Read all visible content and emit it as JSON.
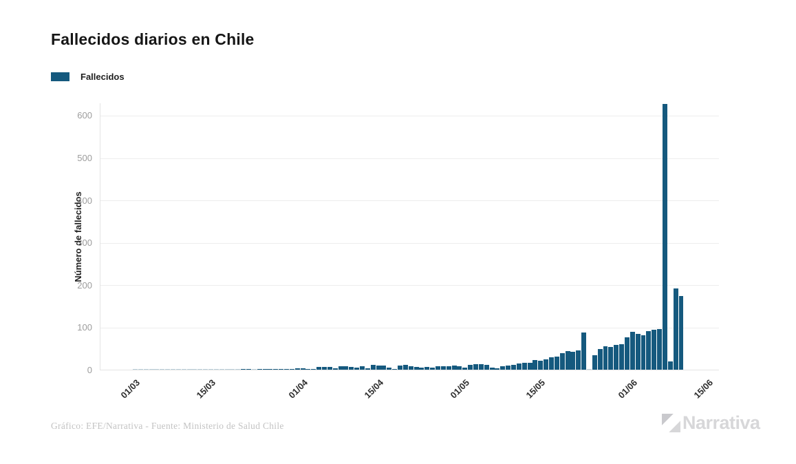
{
  "title": "Fallecidos diarios en Chile",
  "legend": {
    "label": "Fallecidos",
    "color": "#15597e"
  },
  "footer": {
    "credit": "Gráfico: EFE/Narrativa - Fuente: Ministerio de Salud Chile"
  },
  "logo": {
    "text": "Narrativa"
  },
  "chart_data": {
    "type": "bar",
    "title": "Fallecidos diarios en Chile",
    "xlabel": "",
    "ylabel": "Número de fallecidos",
    "series_name": "Fallecidos",
    "bar_color": "#15597e",
    "grid": true,
    "legend_position": "top-left",
    "ylim": [
      0,
      630
    ],
    "yticks": [
      0,
      100,
      200,
      300,
      400,
      500,
      600
    ],
    "xticks": [
      "01/03",
      "15/03",
      "01/04",
      "15/04",
      "01/05",
      "15/05",
      "01/06",
      "15/06"
    ],
    "xtick_day_offsets": [
      0,
      14,
      31,
      45,
      61,
      75,
      92,
      106
    ],
    "dates": [
      "01/03",
      "02/03",
      "03/03",
      "04/03",
      "05/03",
      "06/03",
      "07/03",
      "08/03",
      "09/03",
      "10/03",
      "11/03",
      "12/03",
      "13/03",
      "14/03",
      "15/03",
      "16/03",
      "17/03",
      "18/03",
      "19/03",
      "20/03",
      "21/03",
      "22/03",
      "23/03",
      "24/03",
      "25/03",
      "26/03",
      "27/03",
      "28/03",
      "29/03",
      "30/03",
      "31/03",
      "01/04",
      "02/04",
      "03/04",
      "04/04",
      "05/04",
      "06/04",
      "07/04",
      "08/04",
      "09/04",
      "10/04",
      "11/04",
      "12/04",
      "13/04",
      "14/04",
      "15/04",
      "16/04",
      "17/04",
      "18/04",
      "19/04",
      "20/04",
      "21/04",
      "22/04",
      "23/04",
      "24/04",
      "25/04",
      "26/04",
      "27/04",
      "28/04",
      "29/04",
      "30/04",
      "01/05",
      "02/05",
      "03/05",
      "04/05",
      "05/05",
      "06/05",
      "07/05",
      "08/05",
      "09/05",
      "10/05",
      "11/05",
      "12/05",
      "13/05",
      "14/05",
      "15/05",
      "16/05",
      "17/05",
      "18/05",
      "19/05",
      "20/05",
      "21/05",
      "22/05",
      "23/05",
      "24/05",
      "25/05",
      "26/05",
      "27/05",
      "28/05",
      "29/05",
      "30/05",
      "31/05",
      "01/06",
      "02/06",
      "03/06",
      "04/06",
      "05/06",
      "06/06",
      "07/06",
      "08/06",
      "09/06",
      "10/06"
    ],
    "values": [
      0,
      0,
      0,
      0,
      0,
      0,
      0,
      0,
      0,
      0,
      0,
      0,
      0,
      0,
      0,
      0,
      0,
      0,
      0,
      0,
      2,
      1,
      0,
      1,
      1,
      1,
      1,
      2,
      2,
      1,
      4,
      3,
      2,
      1,
      6,
      6,
      7,
      4,
      8,
      8,
      6,
      5,
      8,
      4,
      11,
      10,
      10,
      5,
      2,
      10,
      12,
      8,
      7,
      5,
      6,
      5,
      8,
      8,
      8,
      10,
      8,
      5,
      12,
      13,
      13,
      12,
      5,
      4,
      8,
      10,
      11,
      15,
      17,
      17,
      23,
      21,
      24,
      29,
      31,
      39,
      44,
      42,
      46,
      88,
      0,
      34,
      49,
      55,
      54,
      58,
      60,
      76,
      89,
      84,
      82,
      91,
      94,
      96,
      627,
      19,
      192,
      173
    ]
  }
}
